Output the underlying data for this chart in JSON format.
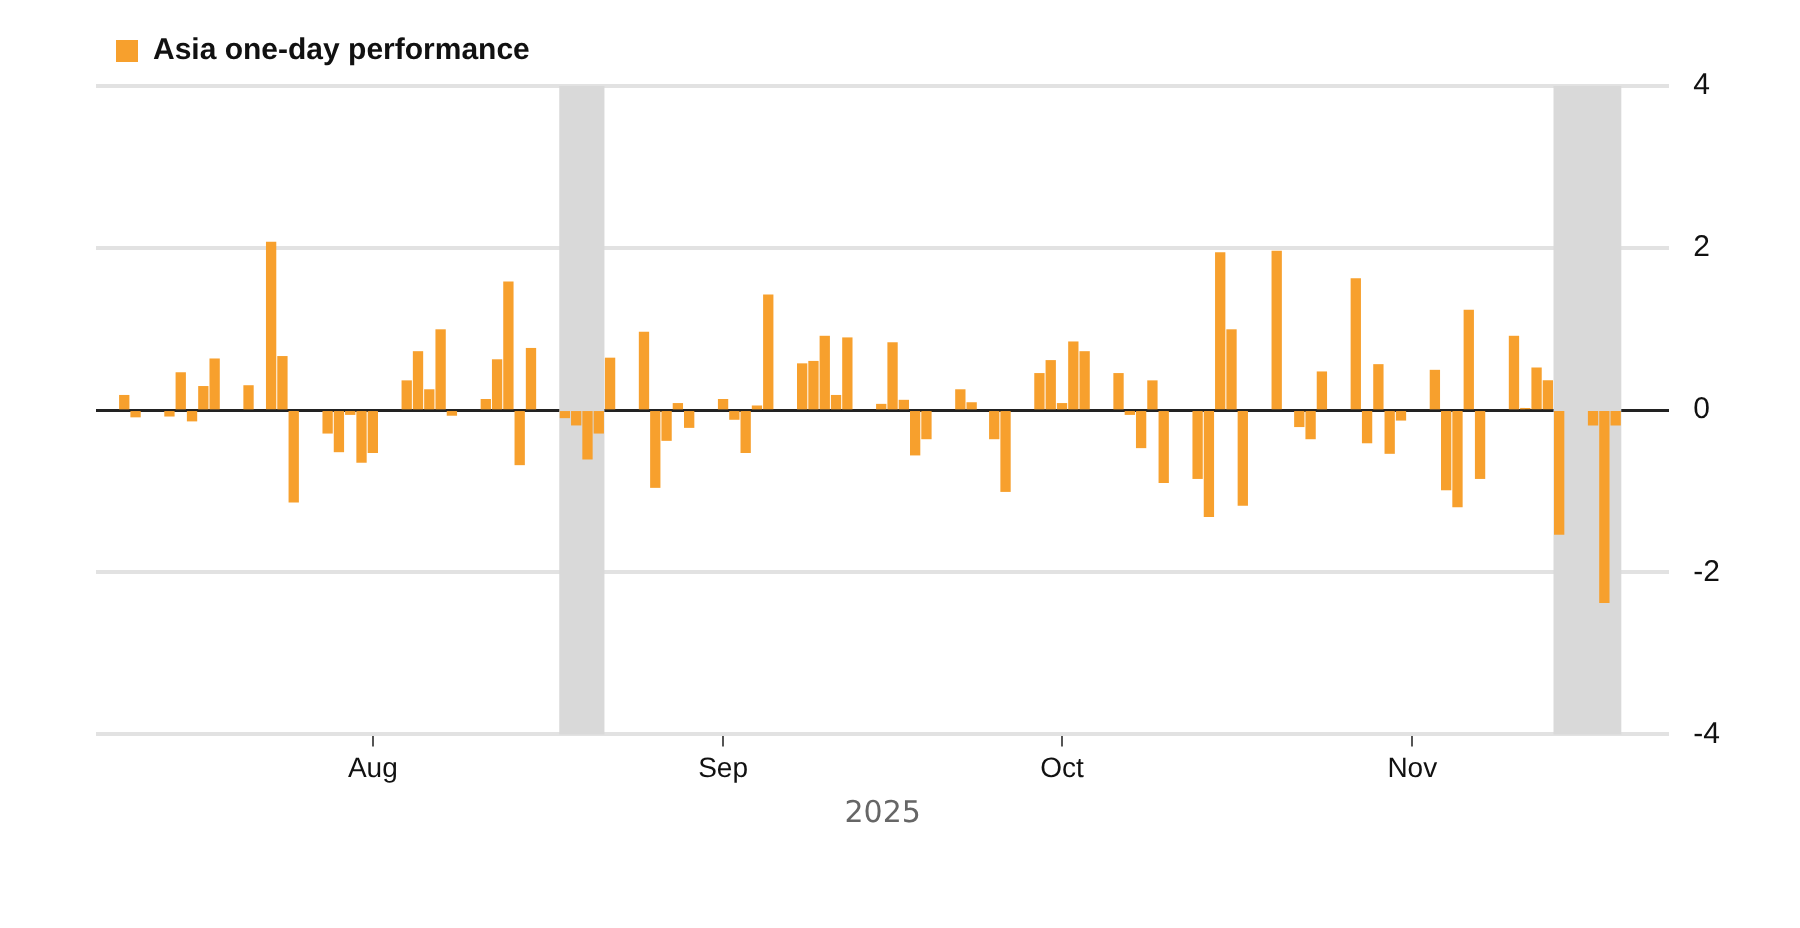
{
  "chart_data": {
    "type": "bar",
    "xlabel": "2025",
    "legend": "top left",
    "grid": "y",
    "xlim": [
      "2025-07-07T12:00",
      "2025-11-23T18:00"
    ],
    "xticks": [
      {
        "value": "2025-08-01",
        "label": "Aug"
      },
      {
        "value": "2025-09-01",
        "label": "Sep"
      },
      {
        "value": "2025-10-01",
        "label": "Oct"
      },
      {
        "value": "2025-11-01",
        "label": "Nov"
      }
    ],
    "ylim": [
      -4,
      4
    ],
    "yticks": [
      -4,
      -2,
      0,
      2,
      4
    ],
    "bands": [
      {
        "axis": "x",
        "from": "2025-08-17T12:00",
        "to": "2025-08-21T12:00",
        "color": "#d9d9d9"
      },
      {
        "axis": "x",
        "from": "2025-11-13T12:00",
        "to": "2025-11-19T12:00",
        "color": "#d9d9d9"
      }
    ],
    "x": [
      "2025-07-10",
      "2025-07-11",
      "2025-07-14",
      "2025-07-15",
      "2025-07-16",
      "2025-07-17",
      "2025-07-18",
      "2025-07-21",
      "2025-07-23",
      "2025-07-24",
      "2025-07-25",
      "2025-07-28",
      "2025-07-29",
      "2025-07-30",
      "2025-07-31",
      "2025-08-01",
      "2025-08-04",
      "2025-08-05",
      "2025-08-06",
      "2025-08-07",
      "2025-08-08",
      "2025-08-11",
      "2025-08-12",
      "2025-08-13",
      "2025-08-14",
      "2025-08-15",
      "2025-08-18",
      "2025-08-19",
      "2025-08-20",
      "2025-08-21",
      "2025-08-22",
      "2025-08-25",
      "2025-08-26",
      "2025-08-27",
      "2025-08-28",
      "2025-08-29",
      "2025-09-01",
      "2025-09-02",
      "2025-09-03",
      "2025-09-04",
      "2025-09-05",
      "2025-09-08",
      "2025-09-09",
      "2025-09-10",
      "2025-09-11",
      "2025-09-12",
      "2025-09-15",
      "2025-09-16",
      "2025-09-17",
      "2025-09-18",
      "2025-09-19",
      "2025-09-22",
      "2025-09-23",
      "2025-09-25",
      "2025-09-26",
      "2025-09-29",
      "2025-09-30",
      "2025-10-01",
      "2025-10-02",
      "2025-10-03",
      "2025-10-06",
      "2025-10-07",
      "2025-10-08",
      "2025-10-09",
      "2025-10-10",
      "2025-10-13",
      "2025-10-14",
      "2025-10-15",
      "2025-10-16",
      "2025-10-17",
      "2025-10-20",
      "2025-10-22",
      "2025-10-23",
      "2025-10-24",
      "2025-10-27",
      "2025-10-28",
      "2025-10-29",
      "2025-10-30",
      "2025-10-31",
      "2025-11-03",
      "2025-11-04",
      "2025-11-05",
      "2025-11-06",
      "2025-11-07",
      "2025-11-10",
      "2025-11-11",
      "2025-11-12",
      "2025-11-13",
      "2025-11-14",
      "2025-11-17",
      "2025-11-18",
      "2025-11-19"
    ],
    "series": [
      {
        "name": "Asia one-day performance",
        "color": "#f7a02d",
        "values": [
          0.18,
          -0.08,
          -0.07,
          0.46,
          -0.13,
          0.29,
          0.63,
          0.3,
          2.07,
          0.66,
          -1.13,
          -0.28,
          -0.51,
          -0.05,
          -0.64,
          -0.52,
          0.36,
          0.72,
          0.25,
          0.99,
          -0.06,
          0.13,
          0.62,
          1.58,
          -0.67,
          0.76,
          -0.09,
          -0.18,
          -0.6,
          -0.28,
          0.64,
          0.96,
          -0.95,
          -0.37,
          0.08,
          -0.21,
          0.13,
          -0.11,
          -0.52,
          0.05,
          1.42,
          0.57,
          0.6,
          0.91,
          0.18,
          0.89,
          0.07,
          0.83,
          0.12,
          -0.55,
          -0.35,
          0.25,
          0.09,
          -0.35,
          -1.0,
          0.45,
          0.61,
          0.08,
          0.84,
          0.72,
          0.45,
          -0.05,
          -0.46,
          0.36,
          -0.89,
          -0.84,
          -1.31,
          1.94,
          0.99,
          -1.17,
          1.96,
          -0.2,
          -0.35,
          0.47,
          1.62,
          -0.4,
          0.56,
          -0.53,
          -0.12,
          0.49,
          -0.98,
          -1.19,
          1.23,
          -0.84,
          0.91,
          0.02,
          0.52,
          0.36,
          -1.53,
          -0.18,
          -2.37,
          -0.18
        ]
      }
    ]
  }
}
